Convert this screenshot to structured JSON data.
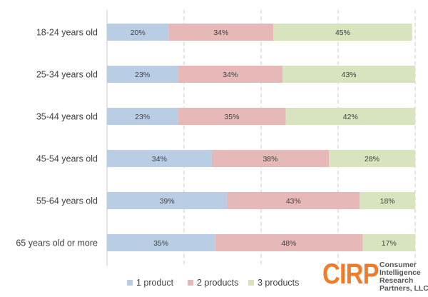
{
  "chart_data": {
    "type": "bar",
    "orientation": "horizontal",
    "stacked": true,
    "percent_stacked": true,
    "title": "",
    "xlabel": "",
    "ylabel": "",
    "xlim": [
      0,
      100
    ],
    "grid": true,
    "legend_position": "bottom",
    "categories": [
      "18-24 years old",
      "25-34 years old",
      "35-44 years old",
      "45-54 years old",
      "55-64 years old",
      "65 years old or more"
    ],
    "series": [
      {
        "name": "1 product",
        "color": "#b9cde5",
        "values": [
          20,
          23,
          23,
          34,
          39,
          35
        ]
      },
      {
        "name": "2 products",
        "color": "#e6b9b8",
        "values": [
          34,
          34,
          35,
          38,
          43,
          48
        ]
      },
      {
        "name": "3 products",
        "color": "#d7e4bd",
        "values": [
          45,
          43,
          42,
          28,
          18,
          17
        ]
      }
    ]
  },
  "logo": {
    "mark": "CIRP",
    "lines": [
      "Consumer",
      "Intelligence",
      "Research",
      "Partners, LLC"
    ],
    "color": "#f07c2a"
  }
}
